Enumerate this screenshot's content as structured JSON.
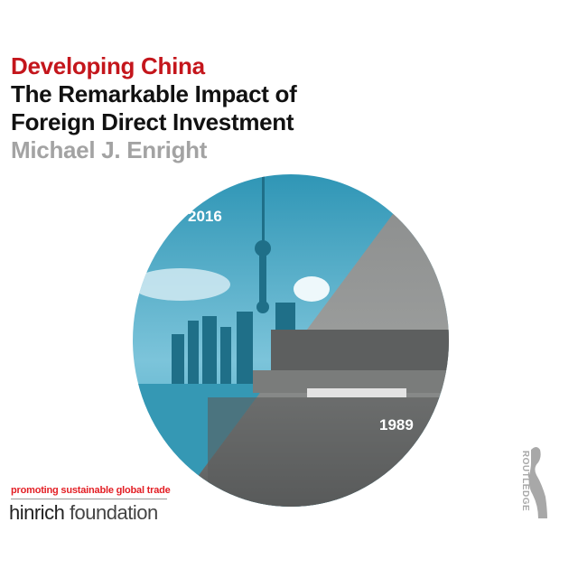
{
  "cover": {
    "series": "Developing China",
    "title_line1": "The Remarkable Impact of",
    "title_line2": "Foreign Direct Investment",
    "author": "Michael J. Enright",
    "year_modern": "2016",
    "year_old": "1989"
  },
  "sponsor": {
    "tagline": "promoting sustainable global trade",
    "name_bold": "hinrich",
    "name_light": "foundation"
  },
  "publisher": {
    "name": "ROUTLEDGE",
    "icon": "routledge-profile-logo"
  },
  "colors": {
    "series_red": "#c4161c",
    "author_gray": "#a3a3a3",
    "modern_teal": "#3aa3c0",
    "old_gray": "#6b6d6d",
    "tagline_red": "#e31e24"
  }
}
